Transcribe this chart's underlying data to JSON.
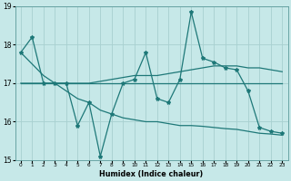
{
  "title": "",
  "xlabel": "Humidex (Indice chaleur)",
  "ylabel": "",
  "xlim": [
    -0.5,
    23.5
  ],
  "ylim": [
    15,
    19
  ],
  "yticks": [
    15,
    16,
    17,
    18,
    19
  ],
  "xticks": [
    0,
    1,
    2,
    3,
    4,
    5,
    6,
    7,
    8,
    9,
    10,
    11,
    12,
    13,
    14,
    15,
    16,
    17,
    18,
    19,
    20,
    21,
    22,
    23
  ],
  "background_color": "#c6e8e8",
  "grid_color": "#a8d0d0",
  "line_color": "#1e7878",
  "series": [
    {
      "x": [
        0,
        1,
        2,
        3,
        4,
        5,
        6,
        7,
        8,
        9,
        10,
        11,
        12,
        13,
        14,
        15,
        16,
        17,
        18,
        19,
        20,
        21,
        22,
        23
      ],
      "y": [
        17.8,
        18.2,
        17.0,
        17.0,
        17.0,
        15.9,
        16.5,
        15.1,
        16.2,
        17.0,
        17.1,
        17.8,
        16.6,
        16.5,
        17.1,
        18.85,
        17.65,
        17.55,
        17.4,
        17.35,
        16.8,
        15.85,
        15.75,
        15.7
      ],
      "marker": "*",
      "linewidth": 0.9
    },
    {
      "x": [
        0,
        23
      ],
      "y": [
        17.0,
        17.0
      ],
      "marker": null,
      "linewidth": 0.9
    },
    {
      "x": [
        0,
        1,
        2,
        3,
        4,
        5,
        6,
        7,
        8,
        9,
        10,
        11,
        12,
        13,
        14,
        15,
        16,
        17,
        18,
        19,
        20,
        21,
        22,
        23
      ],
      "y": [
        17.0,
        17.0,
        17.0,
        17.0,
        17.0,
        17.0,
        17.0,
        17.05,
        17.1,
        17.15,
        17.2,
        17.2,
        17.2,
        17.25,
        17.3,
        17.35,
        17.4,
        17.45,
        17.45,
        17.45,
        17.4,
        17.4,
        17.35,
        17.3
      ],
      "marker": null,
      "linewidth": 0.9
    },
    {
      "x": [
        0,
        1,
        2,
        3,
        4,
        5,
        6,
        7,
        8,
        9,
        10,
        11,
        12,
        13,
        14,
        15,
        16,
        17,
        18,
        19,
        20,
        21,
        22,
        23
      ],
      "y": [
        17.8,
        17.5,
        17.2,
        17.0,
        16.8,
        16.6,
        16.5,
        16.3,
        16.2,
        16.1,
        16.05,
        16.0,
        16.0,
        15.95,
        15.9,
        15.9,
        15.88,
        15.85,
        15.82,
        15.8,
        15.75,
        15.7,
        15.68,
        15.65
      ],
      "marker": null,
      "linewidth": 0.9
    }
  ]
}
